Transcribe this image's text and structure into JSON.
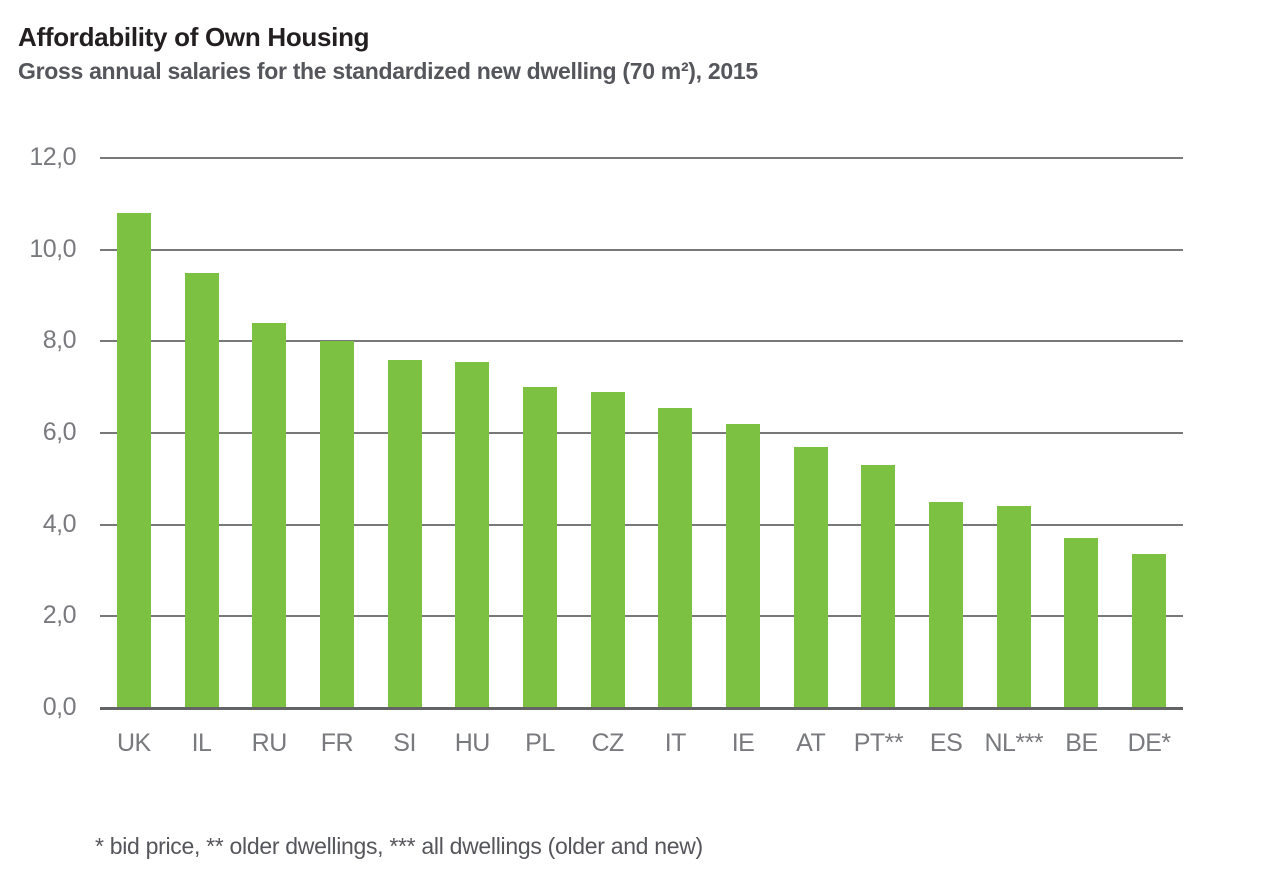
{
  "header": {
    "title": "Affordability of Own Housing",
    "subtitle": "Gross annual salaries for the standardized new dwelling (70 m²), 2015"
  },
  "chart_data": {
    "type": "bar",
    "title": "Affordability of Own Housing",
    "subtitle": "Gross annual salaries for the standardized new dwelling (70 m²), 2015",
    "categories": [
      "UK",
      "IL",
      "RU",
      "FR",
      "SI",
      "HU",
      "PL",
      "CZ",
      "IT",
      "IE",
      "AT",
      "PT**",
      "ES",
      "NL***",
      "BE",
      "DE*"
    ],
    "values": [
      10.8,
      9.5,
      8.4,
      8.0,
      7.6,
      7.55,
      7.0,
      6.9,
      6.55,
      6.2,
      5.7,
      5.3,
      4.5,
      4.4,
      3.7,
      3.35
    ],
    "xlabel": "",
    "ylabel": "",
    "ylim": [
      0,
      12
    ],
    "y_ticks": [
      {
        "value": 12,
        "label": "12,0"
      },
      {
        "value": 10,
        "label": "10,0"
      },
      {
        "value": 8,
        "label": "8,0"
      },
      {
        "value": 6,
        "label": "6,0"
      },
      {
        "value": 4,
        "label": "4,0"
      },
      {
        "value": 2,
        "label": "2,0"
      },
      {
        "value": 0,
        "label": "0,0"
      }
    ],
    "grid": true,
    "legend": false,
    "bar_color": "#7cc142",
    "gridline_color": "#77787a",
    "axis_text_color": "#797a7d"
  },
  "footnote": "* bid price, ** older dwellings, *** all dwellings (older and new)"
}
